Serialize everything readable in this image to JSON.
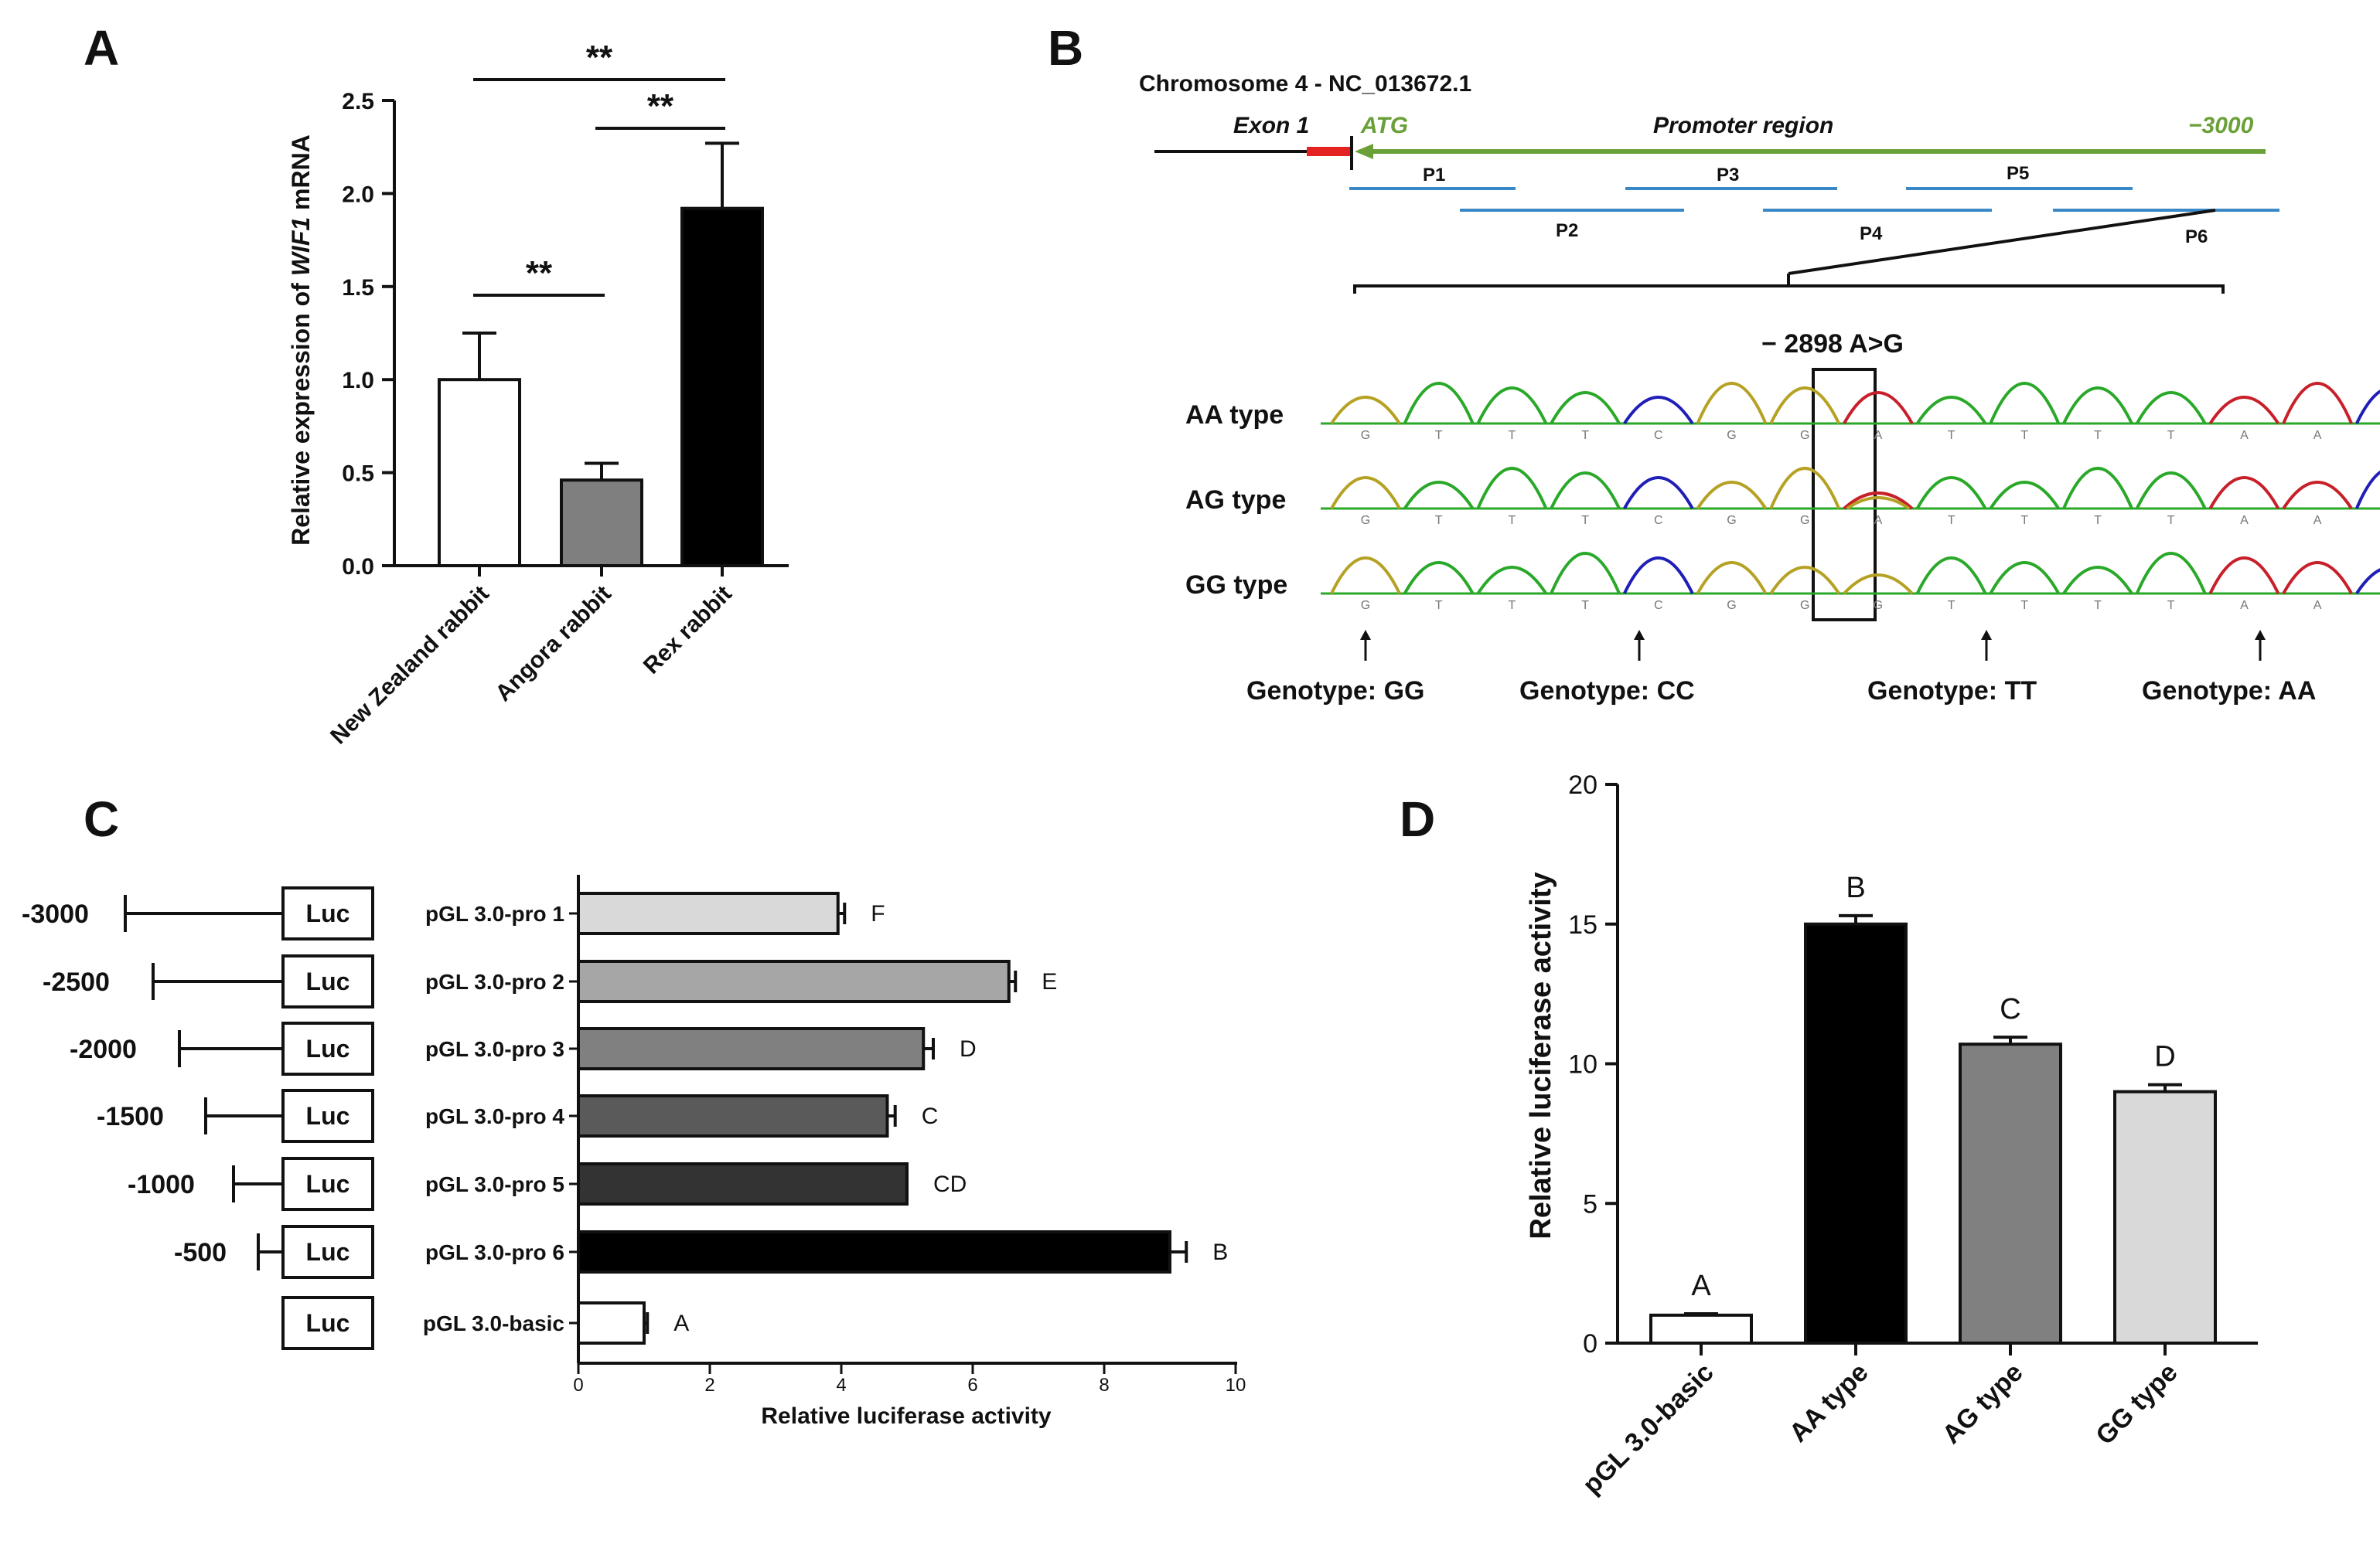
{
  "panel_labels": [
    "A",
    "B",
    "C",
    "D"
  ],
  "panel_a": {
    "ylabel_parts": [
      "Relative expression of ",
      "WIF1",
      " mRNA"
    ],
    "ticks": [
      "0.0",
      "0.5",
      "1.0",
      "1.5",
      "2.0",
      "2.5"
    ],
    "significance": [
      {
        "from": 0,
        "to": 2,
        "label": "**"
      },
      {
        "from": 1,
        "to": 2,
        "label": "**"
      },
      {
        "from": 0,
        "to": 1,
        "label": "**"
      }
    ]
  },
  "panel_b": {
    "chromosome": "Chromosome 4 - NC_013672.1",
    "exon_label": "Exon 1",
    "atg_label": "ATG",
    "promoter_label": "Promoter region",
    "end_label": "−3000",
    "fragments": [
      "P1",
      "P2",
      "P3",
      "P4",
      "P5",
      "P6"
    ],
    "snp_label": "− 2898 A>G",
    "types": [
      {
        "label": "AA type",
        "bases": [
          "G",
          "T",
          "T",
          "T",
          "C",
          "G",
          "G",
          "A",
          "T",
          "T",
          "T",
          "T",
          "A",
          "A",
          "C"
        ]
      },
      {
        "label": "AG type",
        "bases": [
          "G",
          "T",
          "T",
          "T",
          "C",
          "G",
          "G",
          "A",
          "T",
          "T",
          "T",
          "T",
          "A",
          "A",
          "C"
        ]
      },
      {
        "label": "GG type",
        "bases": [
          "G",
          "T",
          "T",
          "T",
          "C",
          "G",
          "G",
          "G",
          "T",
          "T",
          "T",
          "T",
          "A",
          "A",
          "C"
        ]
      }
    ],
    "genotypes": [
      "Genotype: GG",
      "Genotype: CC",
      "Genotype: TT",
      "Genotype: AA"
    ],
    "colors": {
      "G": "#b5a224",
      "T": "#2aa829",
      "C": "#1f1fb8",
      "A": "#c8202a"
    }
  },
  "panel_c": {
    "luc_label": "Luc",
    "positions": [
      "-3000",
      "-2500",
      "-2000",
      "-1500",
      "-1000",
      "-500"
    ],
    "xlabel": "Relative luciferase activity"
  },
  "panel_d": {
    "ylabel": "Relative luciferase activity"
  },
  "chart_data": [
    {
      "type": "bar",
      "categories": [
        "New Zealand rabbit",
        "Angora rabbit",
        "Rex rabbit"
      ],
      "values": [
        1.0,
        0.46,
        1.92
      ],
      "errors": [
        0.25,
        0.09,
        0.35
      ],
      "fills": [
        "#ffffff",
        "#7f7f7f",
        "#000000"
      ],
      "ylabel": "Relative expression of WIF1 mRNA",
      "ylim": [
        0,
        2.5
      ],
      "annotations": [
        "**",
        "**",
        "**"
      ]
    },
    {
      "type": "bar",
      "orientation": "horizontal",
      "categories": [
        "pGL 3.0-pro 1",
        "pGL 3.0-pro 2",
        "pGL 3.0-pro 3",
        "pGL 3.0-pro 4",
        "pGL 3.0-pro 5",
        "pGL 3.0-pro 6",
        "pGL 3.0-basic"
      ],
      "values": [
        3.95,
        6.55,
        5.25,
        4.7,
        5.0,
        9.0,
        1.0
      ],
      "errors": [
        0.1,
        0.1,
        0.15,
        0.12,
        0.0,
        0.25,
        0.05
      ],
      "letters": [
        "F",
        "E",
        "D",
        "C",
        "CD",
        "B",
        "A"
      ],
      "fills": [
        "#d9d9d9",
        "#a6a6a6",
        "#808080",
        "#5a5a5a",
        "#333333",
        "#000000",
        "#ffffff"
      ],
      "xlabel": "Relative luciferase activity",
      "xlim": [
        0,
        10
      ],
      "xticks": [
        "0",
        "2",
        "4",
        "6",
        "8",
        "10"
      ]
    },
    {
      "type": "bar",
      "categories": [
        "pGL 3.0-basic",
        "AA type",
        "AG type",
        "GG type"
      ],
      "values": [
        1.0,
        15.0,
        10.7,
        9.0
      ],
      "errors": [
        0.05,
        0.3,
        0.25,
        0.25
      ],
      "letters": [
        "A",
        "B",
        "C",
        "D"
      ],
      "fills": [
        "#ffffff",
        "#000000",
        "#808080",
        "#d9d9d9"
      ],
      "ylabel": "Relative luciferase activity",
      "ylim": [
        0,
        20
      ],
      "yticks": [
        "0",
        "5",
        "10",
        "15",
        "20"
      ]
    }
  ]
}
